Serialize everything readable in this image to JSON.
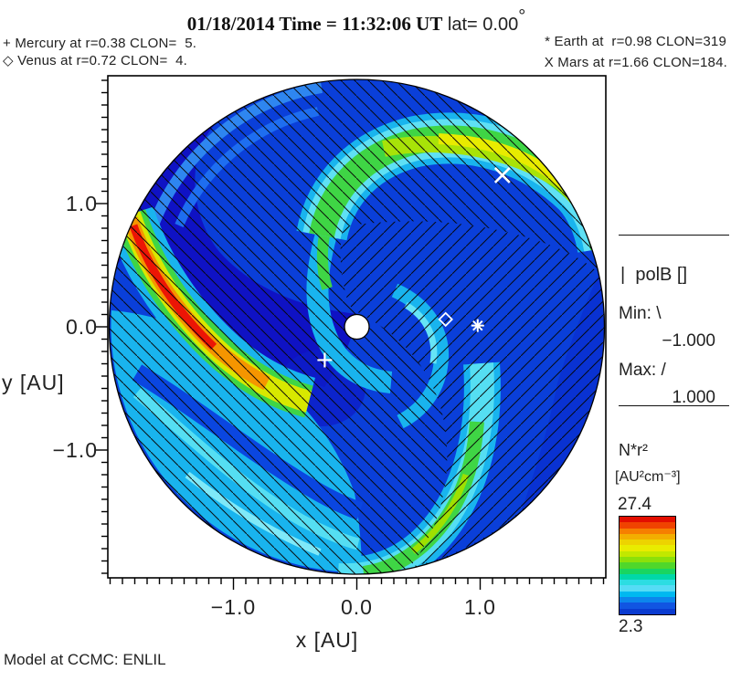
{
  "title": {
    "datetime": "01/18/2014 Time = 11:32:06 UT",
    "lat": " lat= 0.00",
    "degree": "°"
  },
  "planet_legend": {
    "mercury": "+ Mercury at r=0.38 CLON=  5.",
    "venus": "◇ Venus at r=0.72 CLON=  4.",
    "earth": "* Earth at  r=0.98 CLON=319",
    "mars": "X Mars at r=1.66 CLON=184."
  },
  "polB_panel": {
    "symbol": "|",
    "label": "polB []",
    "min_label": "Min:",
    "min_symbol": "\\",
    "min_value": "−1.000",
    "max_label": "Max:",
    "max_symbol": "/",
    "max_value": "1.000"
  },
  "colorbar": {
    "quantity": "N*r²",
    "units": "[AU²cm⁻³]",
    "max": "27.4",
    "min": "2.3",
    "stops": [
      "#E30E00",
      "#F04300",
      "#F67F00",
      "#F3AE00",
      "#EDD300",
      "#E9EC00",
      "#C2E800",
      "#8CE00A",
      "#4FD72B",
      "#19D560",
      "#00D8A8",
      "#2CDDE2",
      "#55DCF5",
      "#00B9F0",
      "#0C86EC",
      "#1155E2",
      "#0A3BD0"
    ]
  },
  "footer": {
    "model": "Model at CCMC: ENLIL"
  },
  "chart_data": {
    "type": "heatmap",
    "description": "ENLIL heliospheric MHD model: polar cut of solar-wind density N*r2 in the ecliptic plane (lat=0), radius 0.1 to 2 AU, with Parker-spiral density arms and magnetic polarity (polB) hatching; heliospheric current sheet separates \\ and / hatched sectors.",
    "xlabel": "x [AU]",
    "ylabel": "y [AU]",
    "xlim": [
      -2.0,
      2.0
    ],
    "ylim": [
      -2.0,
      2.0
    ],
    "minor_tick_step": 0.1,
    "x_major_ticks": {
      "values": [
        -1.0,
        0.0,
        1.0
      ],
      "labels": [
        "−1.0",
        "0.0",
        "1.0"
      ]
    },
    "y_major_ticks": {
      "values": [
        1.0,
        0.0,
        -1.0
      ],
      "labels": [
        "1.0",
        "0.0",
        "−1.0"
      ]
    },
    "color_scale": {
      "quantity": "N*r² [AU²cm⁻³]",
      "min": 2.3,
      "max": 27.4
    },
    "overlay_field": {
      "quantity": "polB []",
      "min": -1.0,
      "max": 1.0,
      "negative_hatch": "\\",
      "positive_hatch": "/"
    },
    "sun": {
      "x_au": 0.0,
      "y_au": 0.0,
      "inner_boundary_au": 0.1
    },
    "planets": [
      {
        "name": "Mercury",
        "symbol": "plus",
        "r_au": 0.38,
        "clon": 5,
        "plot_x_au": -0.26,
        "plot_y_au": -0.27
      },
      {
        "name": "Venus",
        "symbol": "diamond",
        "r_au": 0.72,
        "clon": 4,
        "plot_x_au": 0.72,
        "plot_y_au": 0.06
      },
      {
        "name": "Earth",
        "symbol": "asterisk",
        "r_au": 0.98,
        "clon": 319,
        "plot_x_au": 0.98,
        "plot_y_au": 0.01
      },
      {
        "name": "Mars",
        "symbol": "X",
        "r_au": 1.66,
        "clon": 184,
        "plot_x_au": 1.18,
        "plot_y_au": 1.23
      }
    ]
  }
}
